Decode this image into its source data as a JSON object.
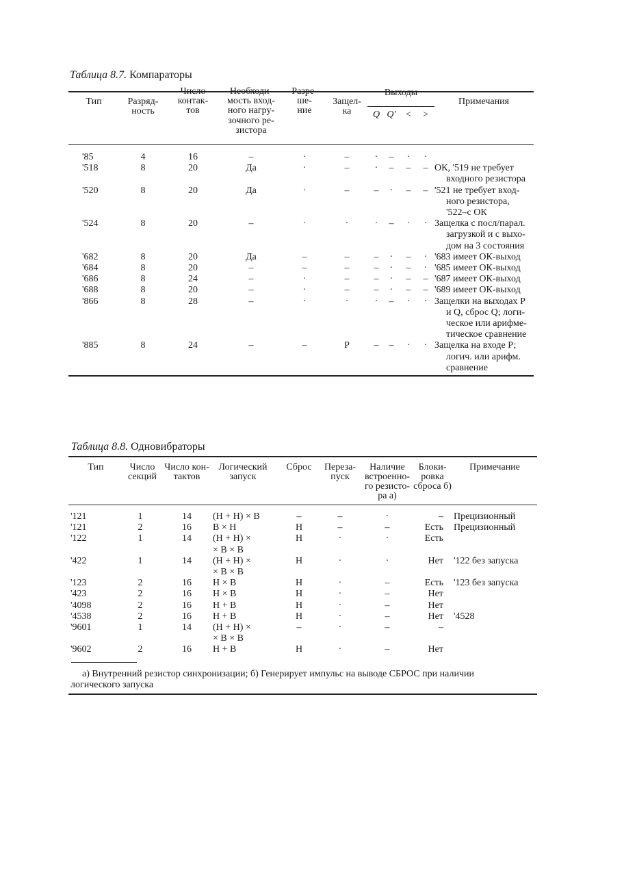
{
  "table87": {
    "title_prefix": "Таблица 8.7.",
    "title": "Компараторы",
    "headers": {
      "type": [
        "Тип"
      ],
      "bits": [
        "Разряд-",
        "ность"
      ],
      "pins": [
        "Число",
        "контак-",
        "тов"
      ],
      "pullup": [
        "Необходи-",
        "мость вход-",
        "ного нагру-",
        "зочного ре-",
        "зистора"
      ],
      "enable": [
        "Разре-",
        "ше-",
        "ние"
      ],
      "latch": [
        "Защел-",
        "ка"
      ],
      "outputs": "Выходы",
      "out_cols": [
        "Q",
        "Q′",
        "<",
        ">"
      ],
      "notes": [
        "Примечания"
      ]
    },
    "rows": [
      {
        "type": "'85",
        "bits": "4",
        "pins": "16",
        "pullup": "–",
        "enable": "·",
        "latch": "–",
        "out": [
          "·",
          "–",
          "·",
          "·"
        ],
        "notes": []
      },
      {
        "type": "'518",
        "bits": "8",
        "pins": "20",
        "pullup": "Да",
        "enable": "·",
        "latch": "–",
        "out": [
          "·",
          "–",
          "–",
          "–"
        ],
        "notes": [
          "ОК, '519 не требует",
          "входного резистора"
        ]
      },
      {
        "type": "'520",
        "bits": "8",
        "pins": "20",
        "pullup": "Да",
        "enable": "·",
        "latch": "–",
        "out": [
          "–",
          "·",
          "–",
          "–"
        ],
        "notes": [
          "'521 не требует вход-",
          "ного резистора,",
          "'522–с ОК"
        ]
      },
      {
        "type": "'524",
        "bits": "8",
        "pins": "20",
        "pullup": "–",
        "enable": "·",
        "latch": "·",
        "out": [
          "·",
          "–",
          "·",
          "·"
        ],
        "notes": [
          "Защелка с посл/парал.",
          "загрузкой и с выхо-",
          "дом на 3 состояния"
        ]
      },
      {
        "type": "'682",
        "bits": "8",
        "pins": "20",
        "pullup": "Да",
        "enable": "–",
        "latch": "–",
        "out": [
          "–",
          "·",
          "–",
          "·"
        ],
        "notes": [
          "'683 имеет ОК-выход"
        ]
      },
      {
        "type": "'684",
        "bits": "8",
        "pins": "20",
        "pullup": "–",
        "enable": "–",
        "latch": "–",
        "out": [
          "–",
          "·",
          "–",
          "·"
        ],
        "notes": [
          "'685 имеет ОК-выход"
        ]
      },
      {
        "type": "'686",
        "bits": "8",
        "pins": "24",
        "pullup": "–",
        "enable": "·",
        "latch": "–",
        "out": [
          "–",
          "·",
          "–",
          "–"
        ],
        "notes": [
          "'687 имеет ОК-выход"
        ]
      },
      {
        "type": "'688",
        "bits": "8",
        "pins": "20",
        "pullup": "–",
        "enable": "·",
        "latch": "–",
        "out": [
          "–",
          "·",
          "–",
          "–"
        ],
        "notes": [
          "'689 имеет ОК-выход"
        ]
      },
      {
        "type": "'866",
        "bits": "8",
        "pins": "28",
        "pullup": "–",
        "enable": "·",
        "latch": "·",
        "out": [
          "·",
          "–",
          "·",
          "·"
        ],
        "notes": [
          "Защелки на выходах Р",
          "и Q, сброс Q; логи-",
          "ческое или арифме-",
          "тическое сравнение"
        ]
      },
      {
        "type": "'885",
        "bits": "8",
        "pins": "24",
        "pullup": "–",
        "enable": "–",
        "latch": "Р",
        "out": [
          "–",
          "–",
          "·",
          "·"
        ],
        "notes": [
          "Защелка на входе Р;",
          "логич. или арифм.",
          "сравнение"
        ]
      }
    ]
  },
  "table88": {
    "title_prefix": "Таблица 8.8.",
    "title": "Одновибраторы",
    "headers": {
      "type": [
        "Тип"
      ],
      "sections": [
        "Число",
        "секций"
      ],
      "pins": [
        "Число кон-",
        "тактов"
      ],
      "trigger": [
        "Логический",
        "запуск"
      ],
      "reset": [
        "Сброс"
      ],
      "retrigger": [
        "Переза-",
        "пуск"
      ],
      "resistor": [
        "Наличие",
        "встроенно-",
        "го резисто-",
        "ра а)"
      ],
      "lockout": [
        "Блоки-",
        "ровка",
        "сброса б)"
      ],
      "note": [
        "Примечание"
      ]
    },
    "rows": [
      {
        "type": "'121",
        "sections": "1",
        "pins": "14",
        "trigger": [
          "(Н + Н) × В"
        ],
        "reset": "–",
        "retrigger": "–",
        "resistor": "·",
        "lockout": "–",
        "note": "Прецизионный"
      },
      {
        "type": "'121",
        "sections": "2",
        "pins": "16",
        "trigger": [
          "В × Н"
        ],
        "reset": "Н",
        "retrigger": "–",
        "resistor": "–",
        "lockout": "Есть",
        "note": "Прецизионный"
      },
      {
        "type": "'122",
        "sections": "1",
        "pins": "14",
        "trigger": [
          "(Н + Н) ×",
          "× В × В"
        ],
        "reset": "Н",
        "retrigger": "·",
        "resistor": "·",
        "lockout": "Есть",
        "note": ""
      },
      {
        "type": "'422",
        "sections": "1",
        "pins": "14",
        "trigger": [
          "(Н + Н) ×",
          "× В × В"
        ],
        "reset": "Н",
        "retrigger": "·",
        "resistor": "·",
        "lockout": "Нет",
        "note": "'122 без запуска"
      },
      {
        "type": "'123",
        "sections": "2",
        "pins": "16",
        "trigger": [
          "Н × В"
        ],
        "reset": "Н",
        "retrigger": "·",
        "resistor": "–",
        "lockout": "Есть",
        "note": "'123 без запуска"
      },
      {
        "type": "'423",
        "sections": "2",
        "pins": "16",
        "trigger": [
          "Н × В"
        ],
        "reset": "Н",
        "retrigger": "·",
        "resistor": "–",
        "lockout": "Нет",
        "note": ""
      },
      {
        "type": "'4098",
        "sections": "2",
        "pins": "16",
        "trigger": [
          "Н + В"
        ],
        "reset": "Н",
        "retrigger": "·",
        "resistor": "–",
        "lockout": "Нет",
        "note": ""
      },
      {
        "type": "'4538",
        "sections": "2",
        "pins": "16",
        "trigger": [
          "Н + В"
        ],
        "reset": "Н",
        "retrigger": "·",
        "resistor": "–",
        "lockout": "Нет",
        "note": "'4528"
      },
      {
        "type": "'9601",
        "sections": "1",
        "pins": "14",
        "trigger": [
          "(Н + Н) ×",
          "× В × В"
        ],
        "reset": "–",
        "retrigger": "·",
        "resistor": "–",
        "lockout": "–",
        "note": ""
      },
      {
        "type": "'9602",
        "sections": "2",
        "pins": "16",
        "trigger": [
          "Н + В"
        ],
        "reset": "Н",
        "retrigger": "·",
        "resistor": "–",
        "lockout": "Нет",
        "note": ""
      }
    ],
    "footnote": [
      "а) Внутренний резистор синхронизации;  б) Генерирует импульс на выводе СБРОС при наличии",
      "логического запуска"
    ]
  }
}
